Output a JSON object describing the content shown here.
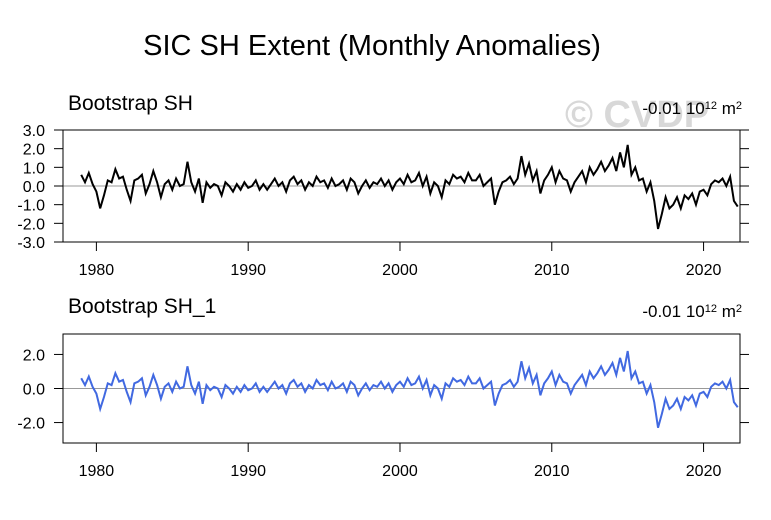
{
  "title": "SIC SH Extent (Monthly Anomalies)",
  "watermark": "© CVDP",
  "chart_data": [
    {
      "type": "line",
      "title": "Bootstrap SH",
      "units": [
        "-0.01 10",
        "12",
        " m",
        "2"
      ],
      "x": [
        1979,
        1979.25,
        1979.5,
        1979.75,
        1980,
        1980.25,
        1980.5,
        1980.75,
        1981,
        1981.25,
        1981.5,
        1981.75,
        1982,
        1982.25,
        1982.5,
        1982.75,
        1983,
        1983.25,
        1983.5,
        1983.75,
        1984,
        1984.25,
        1984.5,
        1984.75,
        1985,
        1985.25,
        1985.5,
        1985.75,
        1986,
        1986.25,
        1986.5,
        1986.75,
        1987,
        1987.25,
        1987.5,
        1987.75,
        1988,
        1988.25,
        1988.5,
        1988.75,
        1989,
        1989.25,
        1989.5,
        1989.75,
        1990,
        1990.25,
        1990.5,
        1990.75,
        1991,
        1991.25,
        1991.5,
        1991.75,
        1992,
        1992.25,
        1992.5,
        1992.75,
        1993,
        1993.25,
        1993.5,
        1993.75,
        1994,
        1994.25,
        1994.5,
        1994.75,
        1995,
        1995.25,
        1995.5,
        1995.75,
        1996,
        1996.25,
        1996.5,
        1996.75,
        1997,
        1997.25,
        1997.5,
        1997.75,
        1998,
        1998.25,
        1998.5,
        1998.75,
        1999,
        1999.25,
        1999.5,
        1999.75,
        2000,
        2000.25,
        2000.5,
        2000.75,
        2001,
        2001.25,
        2001.5,
        2001.75,
        2002,
        2002.25,
        2002.5,
        2002.75,
        2003,
        2003.25,
        2003.5,
        2003.75,
        2004,
        2004.25,
        2004.5,
        2004.75,
        2005,
        2005.25,
        2005.5,
        2005.75,
        2006,
        2006.25,
        2006.5,
        2006.75,
        2007,
        2007.25,
        2007.5,
        2007.75,
        2008,
        2008.25,
        2008.5,
        2008.75,
        2009,
        2009.25,
        2009.5,
        2009.75,
        2010,
        2010.25,
        2010.5,
        2010.75,
        2011,
        2011.25,
        2011.5,
        2011.75,
        2012,
        2012.25,
        2012.5,
        2012.75,
        2013,
        2013.25,
        2013.5,
        2013.75,
        2014,
        2014.25,
        2014.5,
        2014.75,
        2015,
        2015.25,
        2015.5,
        2015.75,
        2016,
        2016.25,
        2016.5,
        2016.75,
        2017,
        2017.25,
        2017.5,
        2017.75,
        2018,
        2018.25,
        2018.5,
        2018.75,
        2019,
        2019.25,
        2019.5,
        2019.75,
        2020,
        2020.25,
        2020.5,
        2020.75,
        2021,
        2021.25,
        2021.5,
        2021.75,
        2022,
        2022.25
      ],
      "series": [
        {
          "color": "#000000",
          "values": [
            0.6,
            0.2,
            0.7,
            0.1,
            -0.3,
            -1.2,
            -0.5,
            0.3,
            0.2,
            0.9,
            0.4,
            0.5,
            -0.2,
            -0.8,
            0.3,
            0.4,
            0.6,
            -0.4,
            0.1,
            0.8,
            0.2,
            -0.6,
            0.1,
            0.3,
            -0.2,
            0.4,
            0.0,
            0.1,
            1.3,
            0.2,
            -0.3,
            0.4,
            -0.9,
            0.2,
            -0.1,
            0.1,
            0.0,
            -0.5,
            0.2,
            0.0,
            -0.3,
            0.1,
            -0.2,
            0.2,
            -0.1,
            0.0,
            0.3,
            -0.2,
            0.1,
            -0.2,
            0.1,
            0.4,
            0.0,
            0.2,
            -0.3,
            0.3,
            0.5,
            0.1,
            0.3,
            -0.2,
            0.2,
            0.0,
            0.5,
            0.2,
            0.3,
            -0.1,
            0.4,
            0.0,
            0.1,
            0.3,
            -0.2,
            0.4,
            0.2,
            -0.4,
            0.0,
            0.3,
            -0.1,
            0.2,
            0.1,
            0.4,
            0.0,
            0.3,
            -0.2,
            0.2,
            0.4,
            0.1,
            0.6,
            0.2,
            0.3,
            0.7,
            0.0,
            0.5,
            -0.4,
            0.2,
            0.0,
            -0.6,
            0.3,
            0.1,
            0.6,
            0.4,
            0.5,
            0.2,
            0.7,
            0.3,
            0.3,
            0.6,
            0.0,
            0.2,
            0.4,
            -1.0,
            -0.3,
            0.2,
            0.3,
            0.5,
            0.1,
            0.4,
            1.6,
            0.6,
            1.2,
            0.3,
            0.8,
            -0.4,
            0.3,
            0.6,
            1.0,
            0.2,
            0.8,
            0.4,
            0.3,
            -0.3,
            0.2,
            0.5,
            0.8,
            0.2,
            1.0,
            0.6,
            0.9,
            1.3,
            0.8,
            1.1,
            1.5,
            0.8,
            1.8,
            1.0,
            2.2,
            0.6,
            1.0,
            0.3,
            0.4,
            -0.3,
            0.2,
            -0.8,
            -2.3,
            -1.5,
            -0.6,
            -1.2,
            -1.0,
            -0.6,
            -1.2,
            -0.5,
            -0.7,
            -0.4,
            -1.0,
            -0.3,
            -0.2,
            -0.5,
            0.1,
            0.3,
            0.2,
            0.4,
            0.0,
            0.5,
            -0.8,
            -1.1
          ]
        }
      ],
      "xlim": [
        1977.8,
        2022.4
      ],
      "xticks": [
        1980,
        1990,
        2000,
        2010,
        2020
      ],
      "ylim": [
        -3,
        3
      ],
      "yticks": [
        {
          "value": 3,
          "label": "3.0"
        },
        {
          "value": 2,
          "label": "2.0"
        },
        {
          "value": 1,
          "label": "1.0"
        },
        {
          "value": 0,
          "label": "0.0"
        },
        {
          "value": -1,
          "label": "-1.0"
        },
        {
          "value": -2,
          "label": "-2.0"
        },
        {
          "value": -3,
          "label": "-3.0"
        }
      ]
    },
    {
      "type": "line",
      "title": "Bootstrap SH_1",
      "units": [
        "-0.01 10",
        "12",
        " m",
        "2"
      ],
      "x": [
        1979,
        1979.25,
        1979.5,
        1979.75,
        1980,
        1980.25,
        1980.5,
        1980.75,
        1981,
        1981.25,
        1981.5,
        1981.75,
        1982,
        1982.25,
        1982.5,
        1982.75,
        1983,
        1983.25,
        1983.5,
        1983.75,
        1984,
        1984.25,
        1984.5,
        1984.75,
        1985,
        1985.25,
        1985.5,
        1985.75,
        1986,
        1986.25,
        1986.5,
        1986.75,
        1987,
        1987.25,
        1987.5,
        1987.75,
        1988,
        1988.25,
        1988.5,
        1988.75,
        1989,
        1989.25,
        1989.5,
        1989.75,
        1990,
        1990.25,
        1990.5,
        1990.75,
        1991,
        1991.25,
        1991.5,
        1991.75,
        1992,
        1992.25,
        1992.5,
        1992.75,
        1993,
        1993.25,
        1993.5,
        1993.75,
        1994,
        1994.25,
        1994.5,
        1994.75,
        1995,
        1995.25,
        1995.5,
        1995.75,
        1996,
        1996.25,
        1996.5,
        1996.75,
        1997,
        1997.25,
        1997.5,
        1997.75,
        1998,
        1998.25,
        1998.5,
        1998.75,
        1999,
        1999.25,
        1999.5,
        1999.75,
        2000,
        2000.25,
        2000.5,
        2000.75,
        2001,
        2001.25,
        2001.5,
        2001.75,
        2002,
        2002.25,
        2002.5,
        2002.75,
        2003,
        2003.25,
        2003.5,
        2003.75,
        2004,
        2004.25,
        2004.5,
        2004.75,
        2005,
        2005.25,
        2005.5,
        2005.75,
        2006,
        2006.25,
        2006.5,
        2006.75,
        2007,
        2007.25,
        2007.5,
        2007.75,
        2008,
        2008.25,
        2008.5,
        2008.75,
        2009,
        2009.25,
        2009.5,
        2009.75,
        2010,
        2010.25,
        2010.5,
        2010.75,
        2011,
        2011.25,
        2011.5,
        2011.75,
        2012,
        2012.25,
        2012.5,
        2012.75,
        2013,
        2013.25,
        2013.5,
        2013.75,
        2014,
        2014.25,
        2014.5,
        2014.75,
        2015,
        2015.25,
        2015.5,
        2015.75,
        2016,
        2016.25,
        2016.5,
        2016.75,
        2017,
        2017.25,
        2017.5,
        2017.75,
        2018,
        2018.25,
        2018.5,
        2018.75,
        2019,
        2019.25,
        2019.5,
        2019.75,
        2020,
        2020.25,
        2020.5,
        2020.75,
        2021,
        2021.25,
        2021.5,
        2021.75,
        2022,
        2022.25
      ],
      "series": [
        {
          "color": "#4169e1",
          "values": [
            0.6,
            0.2,
            0.7,
            0.1,
            -0.3,
            -1.2,
            -0.5,
            0.3,
            0.2,
            0.9,
            0.4,
            0.5,
            -0.2,
            -0.8,
            0.3,
            0.4,
            0.6,
            -0.4,
            0.1,
            0.8,
            0.2,
            -0.6,
            0.1,
            0.3,
            -0.2,
            0.4,
            0.0,
            0.1,
            1.3,
            0.2,
            -0.3,
            0.4,
            -0.9,
            0.2,
            -0.1,
            0.1,
            0.0,
            -0.5,
            0.2,
            0.0,
            -0.3,
            0.1,
            -0.2,
            0.2,
            -0.1,
            0.0,
            0.3,
            -0.2,
            0.1,
            -0.2,
            0.1,
            0.4,
            0.0,
            0.2,
            -0.3,
            0.3,
            0.5,
            0.1,
            0.3,
            -0.2,
            0.2,
            0.0,
            0.5,
            0.2,
            0.3,
            -0.1,
            0.4,
            0.0,
            0.1,
            0.3,
            -0.2,
            0.4,
            0.2,
            -0.4,
            0.0,
            0.3,
            -0.1,
            0.2,
            0.1,
            0.4,
            0.0,
            0.3,
            -0.2,
            0.2,
            0.4,
            0.1,
            0.6,
            0.2,
            0.3,
            0.7,
            0.0,
            0.5,
            -0.4,
            0.2,
            0.0,
            -0.6,
            0.3,
            0.1,
            0.6,
            0.4,
            0.5,
            0.2,
            0.7,
            0.3,
            0.3,
            0.6,
            0.0,
            0.2,
            0.4,
            -1.0,
            -0.3,
            0.2,
            0.3,
            0.5,
            0.1,
            0.4,
            1.6,
            0.6,
            1.2,
            0.3,
            0.8,
            -0.4,
            0.3,
            0.6,
            1.0,
            0.2,
            0.8,
            0.4,
            0.3,
            -0.3,
            0.2,
            0.5,
            0.8,
            0.2,
            1.0,
            0.6,
            0.9,
            1.3,
            0.8,
            1.1,
            1.5,
            0.8,
            1.8,
            1.0,
            2.2,
            0.6,
            1.0,
            0.3,
            0.4,
            -0.3,
            0.2,
            -0.8,
            -2.3,
            -1.5,
            -0.6,
            -1.2,
            -1.0,
            -0.6,
            -1.2,
            -0.5,
            -0.7,
            -0.4,
            -1.0,
            -0.3,
            -0.2,
            -0.5,
            0.1,
            0.3,
            0.2,
            0.4,
            0.0,
            0.5,
            -0.8,
            -1.1
          ]
        }
      ],
      "xlim": [
        1977.8,
        2022.4
      ],
      "xticks": [
        1980,
        1990,
        2000,
        2010,
        2020
      ],
      "ylim": [
        -3.2,
        3.2
      ],
      "yticks": [
        {
          "value": 2,
          "label": "2.0"
        },
        {
          "value": 0,
          "label": "0.0"
        },
        {
          "value": -2,
          "label": "-2.0"
        }
      ]
    }
  ]
}
